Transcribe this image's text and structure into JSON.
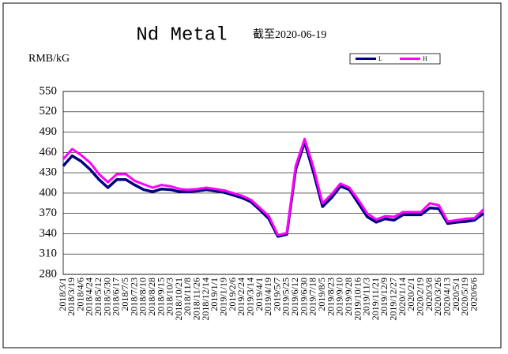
{
  "chart_data": {
    "type": "line",
    "title": "Nd Metal",
    "subtitle": "截至2020-06-19",
    "y_label": "RMB/kG",
    "categories": [
      "2018/3/1",
      "2018/3/19",
      "2018/4/6",
      "2018/4/24",
      "2018/5/12",
      "2018/5/30",
      "2018/6/17",
      "2018/7/5",
      "2018/7/23",
      "2018/8/10",
      "2018/8/28",
      "2018/9/15",
      "2018/10/3",
      "2018/10/21",
      "2018/11/8",
      "2018/11/26",
      "2018/12/14",
      "2019/1/1",
      "2019/1/19",
      "2019/2/6",
      "2019/2/24",
      "2019/3/14",
      "2019/4/1",
      "2019/4/19",
      "2019/5/7",
      "2019/5/25",
      "2019/6/12",
      "2019/6/30",
      "2019/7/18",
      "2019/8/5",
      "2019/8/23",
      "2019/9/10",
      "2019/9/28",
      "2019/10/16",
      "2019/11/3",
      "2019/11/21",
      "2019/12/9",
      "2019/12/27",
      "2020/1/14",
      "2020/2/1",
      "2020/2/19",
      "2020/3/8",
      "2020/3/26",
      "2020/4/13",
      "2020/5/1",
      "2020/5/19",
      "2020/6/6",
      null
    ],
    "series": [
      {
        "name": "L",
        "color": "#000080",
        "values": [
          440,
          455,
          447,
          435,
          420,
          408,
          420,
          420,
          412,
          405,
          402,
          406,
          405,
          402,
          402,
          403,
          405,
          403,
          401,
          397,
          393,
          387,
          375,
          362,
          336,
          339,
          435,
          475,
          430,
          380,
          393,
          410,
          405,
          385,
          365,
          357,
          362,
          360,
          368,
          368,
          368,
          378,
          377,
          355,
          357,
          358,
          360,
          370
        ]
      },
      {
        "name": "H",
        "color": "#ff00ff",
        "values": [
          450,
          465,
          456,
          445,
          428,
          416,
          428,
          428,
          418,
          413,
          408,
          412,
          410,
          406,
          405,
          406,
          408,
          406,
          404,
          400,
          396,
          390,
          378,
          366,
          338,
          341,
          440,
          480,
          437,
          385,
          398,
          414,
          408,
          390,
          370,
          361,
          366,
          365,
          372,
          372,
          372,
          385,
          382,
          358,
          360,
          362,
          363,
          376
        ]
      }
    ],
    "ylim": [
      280,
      550
    ],
    "yticks": [
      280,
      310,
      340,
      370,
      400,
      430,
      460,
      490,
      520,
      550
    ],
    "grid": true,
    "legend": "top-right"
  }
}
